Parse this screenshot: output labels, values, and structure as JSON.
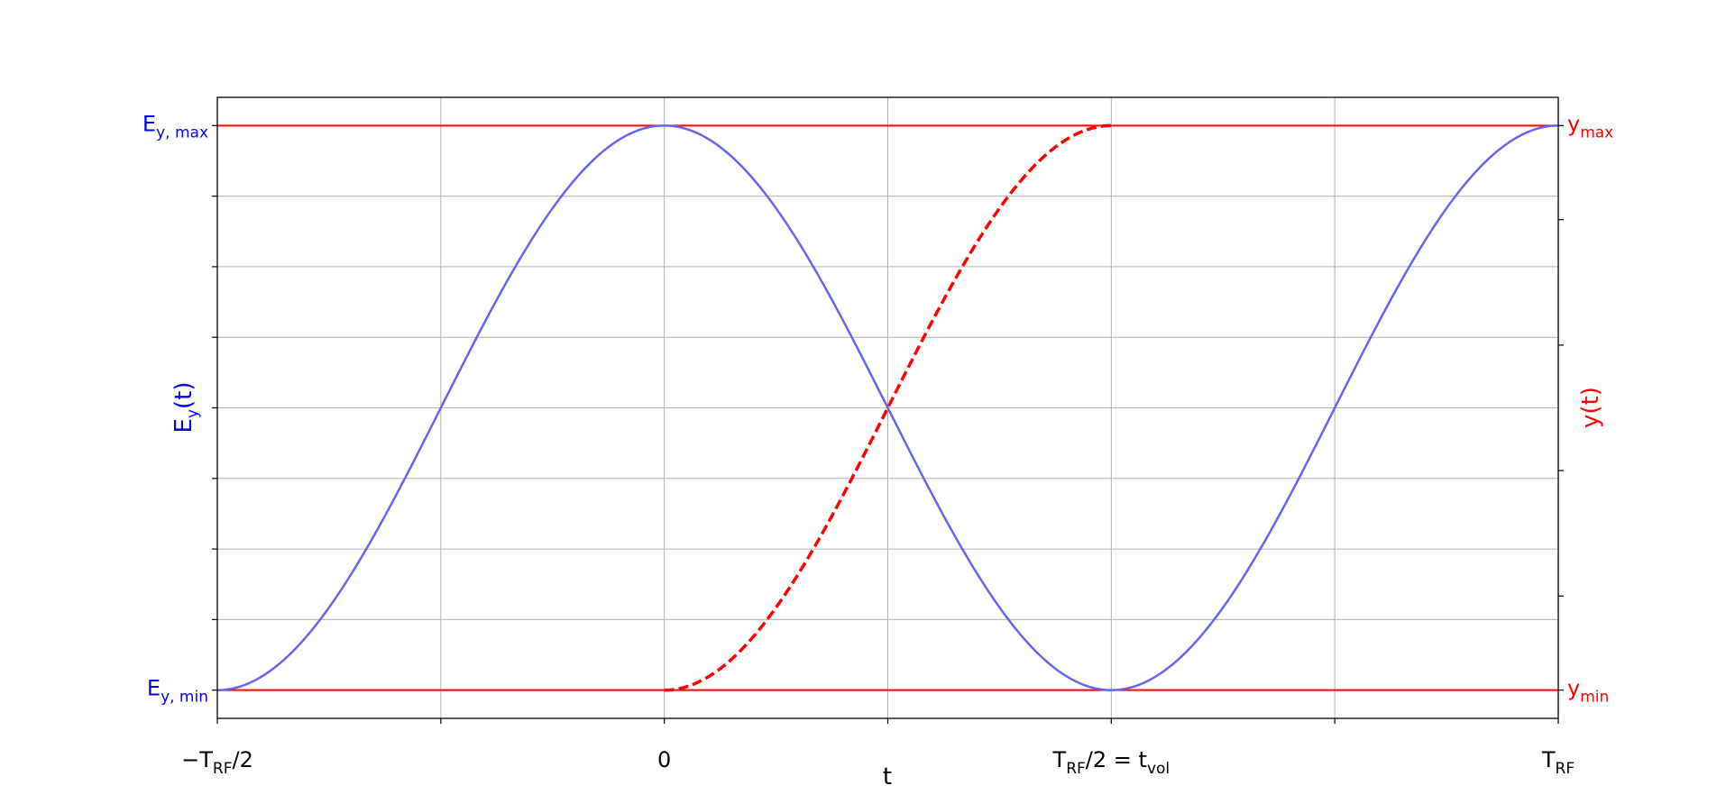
{
  "chart_data": {
    "type": "line",
    "xlabel": "t",
    "ylabel_left": "E_y(t)",
    "ylabel_right": "y(t)",
    "xlim": [
      -0.5,
      1.0
    ],
    "ylim": [
      -1.1,
      1.1
    ],
    "grid": true,
    "x_ticks": [
      {
        "x": -0.5,
        "main": "−T",
        "sub": "RF",
        "tail": "/2"
      },
      {
        "x": -0.25,
        "main": "",
        "sub": "",
        "tail": ""
      },
      {
        "x": 0.0,
        "main": "0",
        "sub": "",
        "tail": ""
      },
      {
        "x": 0.25,
        "main": "",
        "sub": "",
        "tail": ""
      },
      {
        "x": 0.5,
        "main": "T",
        "sub": "RF",
        "tail": "/2 = t",
        "sub2": "vol"
      },
      {
        "x": 0.75,
        "main": "",
        "sub": "",
        "tail": ""
      },
      {
        "x": 1.0,
        "main": "T",
        "sub": "RF",
        "tail": ""
      }
    ],
    "left_y_ticks": [
      {
        "y": 1.0,
        "main": "E",
        "sub": "y, max"
      },
      {
        "y": 0.75,
        "main": "",
        "sub": ""
      },
      {
        "y": 0.5,
        "main": "",
        "sub": ""
      },
      {
        "y": 0.25,
        "main": "",
        "sub": ""
      },
      {
        "y": 0.0,
        "main": "",
        "sub": ""
      },
      {
        "y": -0.25,
        "main": "",
        "sub": ""
      },
      {
        "y": -0.5,
        "main": "",
        "sub": ""
      },
      {
        "y": -0.75,
        "main": "",
        "sub": ""
      },
      {
        "y": -1.0,
        "main": "E",
        "sub": "y, min"
      }
    ],
    "right_y_ticks": [
      {
        "y": 1.0,
        "main": "y",
        "sub": "max"
      },
      {
        "y": 0.6667,
        "main": "",
        "sub": ""
      },
      {
        "y": 0.2222,
        "main": "",
        "sub": ""
      },
      {
        "y": -0.2222,
        "main": "",
        "sub": ""
      },
      {
        "y": -0.6667,
        "main": "",
        "sub": ""
      },
      {
        "y": -1.0,
        "main": "y",
        "sub": "min"
      }
    ],
    "series": [
      {
        "function": "cos(2π t)",
        "x_range": [
          -0.5,
          1.0
        ],
        "color": "#6464f0",
        "style": "solid"
      },
      {
        "function": "-cos(2π t)",
        "x_range": [
          0.0,
          0.5
        ],
        "color": "#ff0000",
        "style": "dashed"
      }
    ],
    "hlines": [
      {
        "y": 1.0,
        "color": "#ff0000"
      },
      {
        "y": -1.0,
        "color": "#ff0000"
      }
    ],
    "colors": {
      "left_axis": "#0000ff",
      "right_axis": "#ff0000",
      "grid": "#b0b0b0",
      "axis": "#000000"
    }
  }
}
